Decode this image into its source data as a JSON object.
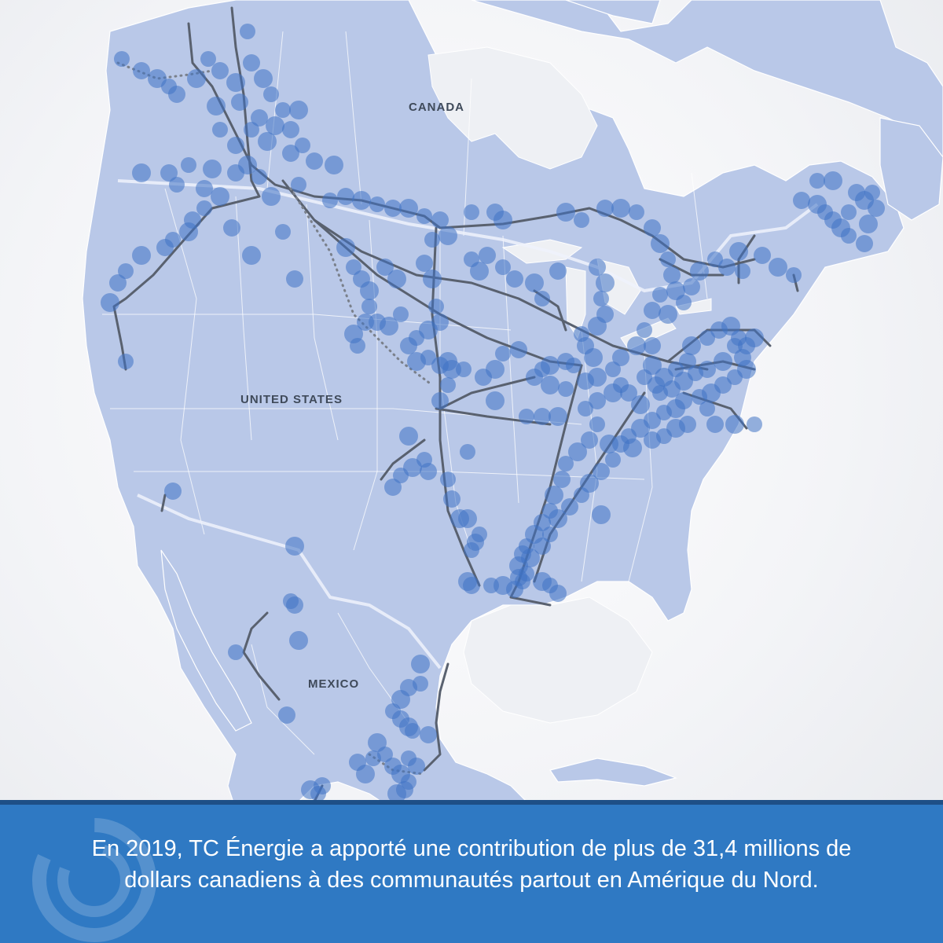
{
  "map": {
    "labels": {
      "canada": "CANADA",
      "united_states": "UNITED STATES",
      "mexico": "MEXICO"
    },
    "colors": {
      "land": "#b9c8e8",
      "pipeline": "#59616f",
      "community_dot": "#3f73c4",
      "banner": "#2f79c3"
    }
  },
  "caption": {
    "text": "En 2019, TC Énergie a apporté une contribution de plus de 31,4 millions de dollars canadiens à des communautés partout en Amérique du Nord."
  },
  "logo": {
    "icon": "tc-energy-logo-watermark"
  }
}
